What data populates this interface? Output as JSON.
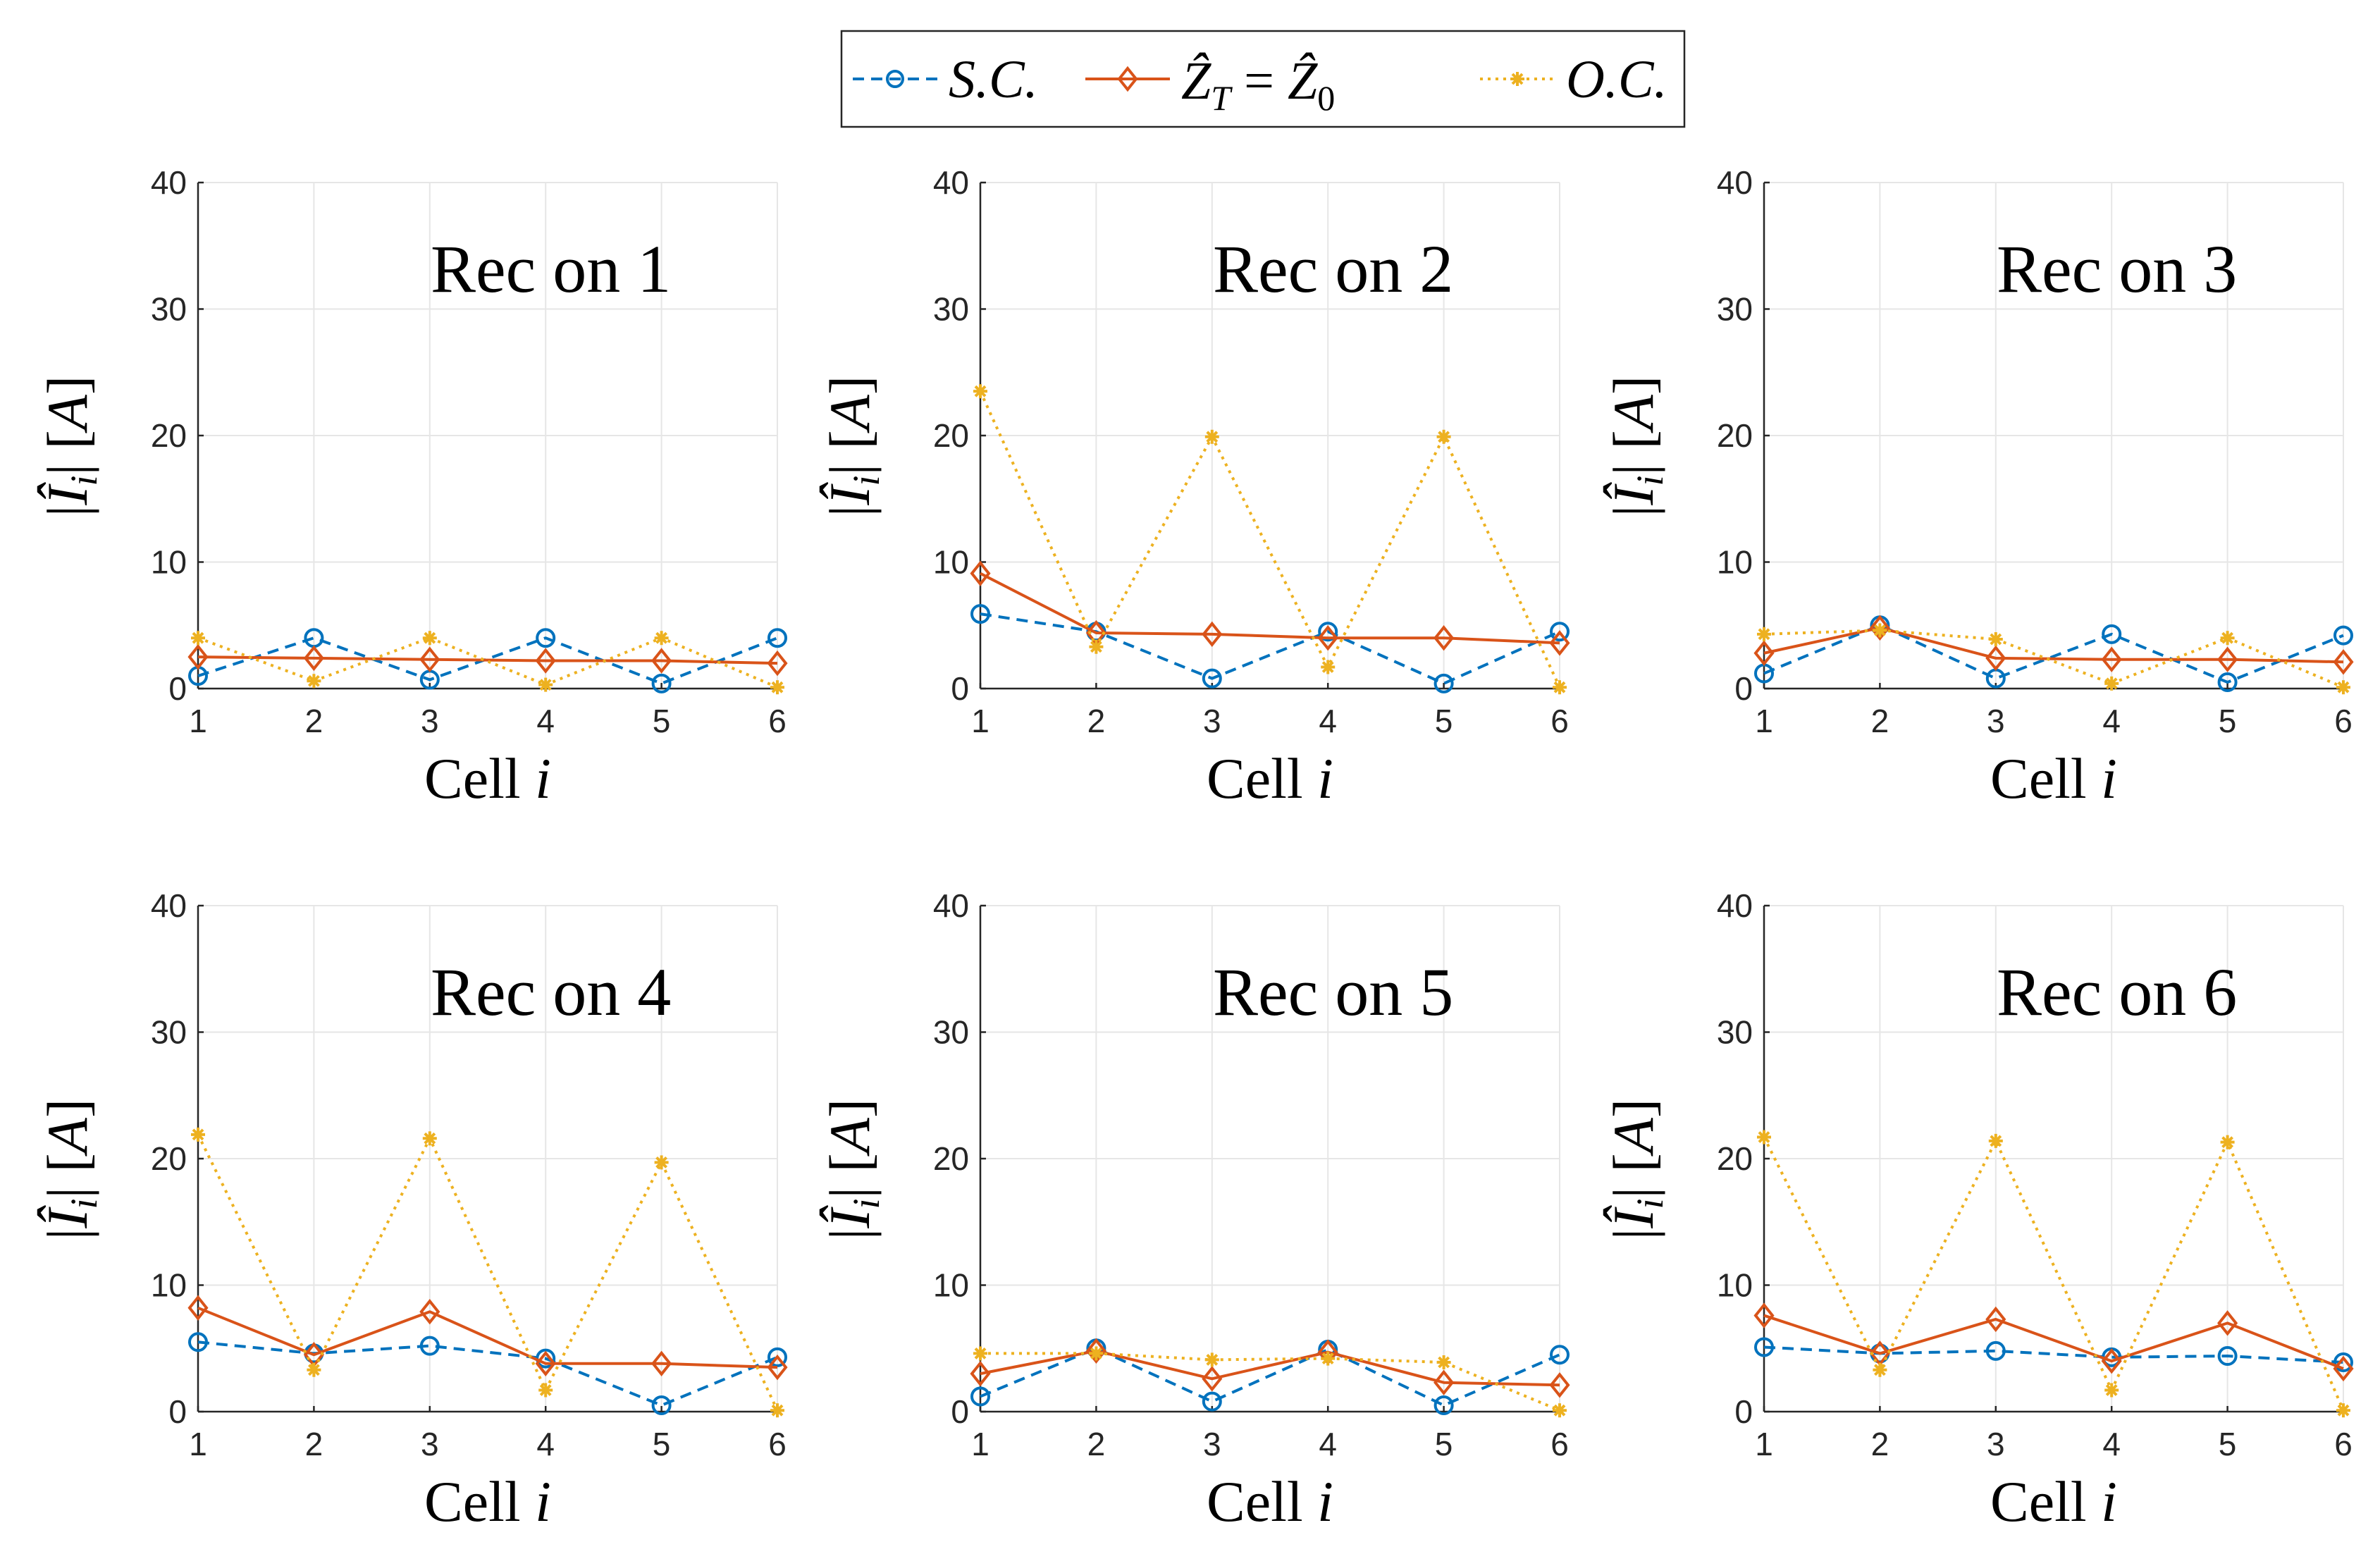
{
  "colors": {
    "sc": "#0072BD",
    "matched": "#D95319",
    "oc": "#EDB120",
    "grid": "#e6e6e6",
    "axis": "#262626"
  },
  "legend": {
    "sc": "S.C.",
    "matched_lhs": "Ẑ",
    "matched_lhs_sub": "T",
    "matched_eq": " = ",
    "matched_rhs": "Ẑ",
    "matched_rhs_sub": "0",
    "oc": "O.C."
  },
  "chart_data": [
    {
      "type": "line",
      "annotation": "Rec on 1",
      "xlabel": "Cell i",
      "ylabel": "|Î_i|  [A]",
      "x": [
        1,
        2,
        3,
        4,
        5,
        6
      ],
      "xlim": [
        1,
        6
      ],
      "ylim": [
        0,
        40
      ],
      "xticks": [
        1,
        2,
        3,
        4,
        5,
        6
      ],
      "yticks": [
        0,
        10,
        20,
        30,
        40
      ],
      "grid": true,
      "series": [
        {
          "name": "S.C.",
          "values": [
            1.0,
            4.0,
            0.7,
            4.0,
            0.4,
            4.0
          ]
        },
        {
          "name": "Z_T = Z_0",
          "values": [
            2.5,
            2.4,
            2.3,
            2.2,
            2.2,
            2.0
          ]
        },
        {
          "name": "O.C.",
          "values": [
            4.0,
            0.6,
            4.0,
            0.3,
            4.0,
            0.1
          ]
        }
      ]
    },
    {
      "type": "line",
      "annotation": "Rec on 2",
      "xlabel": "Cell i",
      "ylabel": "|Î_i|  [A]",
      "x": [
        1,
        2,
        3,
        4,
        5,
        6
      ],
      "xlim": [
        1,
        6
      ],
      "ylim": [
        0,
        40
      ],
      "xticks": [
        1,
        2,
        3,
        4,
        5,
        6
      ],
      "yticks": [
        0,
        10,
        20,
        30,
        40
      ],
      "grid": true,
      "series": [
        {
          "name": "S.C.",
          "values": [
            5.9,
            4.5,
            0.8,
            4.5,
            0.4,
            4.5
          ]
        },
        {
          "name": "Z_T = Z_0",
          "values": [
            9.1,
            4.4,
            4.3,
            4.0,
            4.0,
            3.6
          ]
        },
        {
          "name": "O.C.",
          "values": [
            23.5,
            3.3,
            19.9,
            1.7,
            19.9,
            0.1
          ]
        }
      ]
    },
    {
      "type": "line",
      "annotation": "Rec on 3",
      "xlabel": "Cell i",
      "ylabel": "|Î_i|  [A]",
      "x": [
        1,
        2,
        3,
        4,
        5,
        6
      ],
      "xlim": [
        1,
        6
      ],
      "ylim": [
        0,
        40
      ],
      "xticks": [
        1,
        2,
        3,
        4,
        5,
        6
      ],
      "yticks": [
        0,
        10,
        20,
        30,
        40
      ],
      "grid": true,
      "series": [
        {
          "name": "S.C.",
          "values": [
            1.2,
            5.0,
            0.8,
            4.3,
            0.5,
            4.2
          ]
        },
        {
          "name": "Z_T = Z_0",
          "values": [
            2.8,
            4.8,
            2.4,
            2.3,
            2.3,
            2.1
          ]
        },
        {
          "name": "O.C.",
          "values": [
            4.3,
            4.6,
            3.9,
            0.4,
            4.0,
            0.1
          ]
        }
      ]
    },
    {
      "type": "line",
      "annotation": "Rec on 4",
      "xlabel": "Cell i",
      "ylabel": "|Î_i|  [A]",
      "x": [
        1,
        2,
        3,
        4,
        5,
        6
      ],
      "xlim": [
        1,
        6
      ],
      "ylim": [
        0,
        40
      ],
      "xticks": [
        1,
        2,
        3,
        4,
        5,
        6
      ],
      "yticks": [
        0,
        10,
        20,
        30,
        40
      ],
      "grid": true,
      "series": [
        {
          "name": "S.C.",
          "values": [
            5.5,
            4.6,
            5.2,
            4.2,
            0.5,
            4.3
          ]
        },
        {
          "name": "Z_T = Z_0",
          "values": [
            8.2,
            4.5,
            7.9,
            3.8,
            3.8,
            3.5
          ]
        },
        {
          "name": "O.C.",
          "values": [
            21.9,
            3.3,
            21.6,
            1.7,
            19.7,
            0.1
          ]
        }
      ]
    },
    {
      "type": "line",
      "annotation": "Rec on 5",
      "xlabel": "Cell i",
      "ylabel": "|Î_i|  [A]",
      "x": [
        1,
        2,
        3,
        4,
        5,
        6
      ],
      "xlim": [
        1,
        6
      ],
      "ylim": [
        0,
        40
      ],
      "xticks": [
        1,
        2,
        3,
        4,
        5,
        6
      ],
      "yticks": [
        0,
        10,
        20,
        30,
        40
      ],
      "grid": true,
      "series": [
        {
          "name": "S.C.",
          "values": [
            1.2,
            5.0,
            0.8,
            4.9,
            0.5,
            4.5
          ]
        },
        {
          "name": "Z_T = Z_0",
          "values": [
            3.0,
            4.8,
            2.6,
            4.7,
            2.3,
            2.1
          ]
        },
        {
          "name": "O.C.",
          "values": [
            4.6,
            4.6,
            4.1,
            4.2,
            3.9,
            0.1
          ]
        }
      ]
    },
    {
      "type": "line",
      "annotation": "Rec on 6",
      "xlabel": "Cell i",
      "ylabel": "|Î_i|  [A]",
      "x": [
        1,
        2,
        3,
        4,
        5,
        6
      ],
      "xlim": [
        1,
        6
      ],
      "ylim": [
        0,
        40
      ],
      "xticks": [
        1,
        2,
        3,
        4,
        5,
        6
      ],
      "yticks": [
        0,
        10,
        20,
        30,
        40
      ],
      "grid": true,
      "series": [
        {
          "name": "S.C.",
          "values": [
            5.1,
            4.6,
            4.8,
            4.3,
            4.4,
            3.9
          ]
        },
        {
          "name": "Z_T = Z_0",
          "values": [
            7.6,
            4.6,
            7.3,
            4.0,
            7.0,
            3.4
          ]
        },
        {
          "name": "O.C.",
          "values": [
            21.7,
            3.3,
            21.4,
            1.7,
            21.3,
            0.1
          ]
        }
      ]
    }
  ]
}
